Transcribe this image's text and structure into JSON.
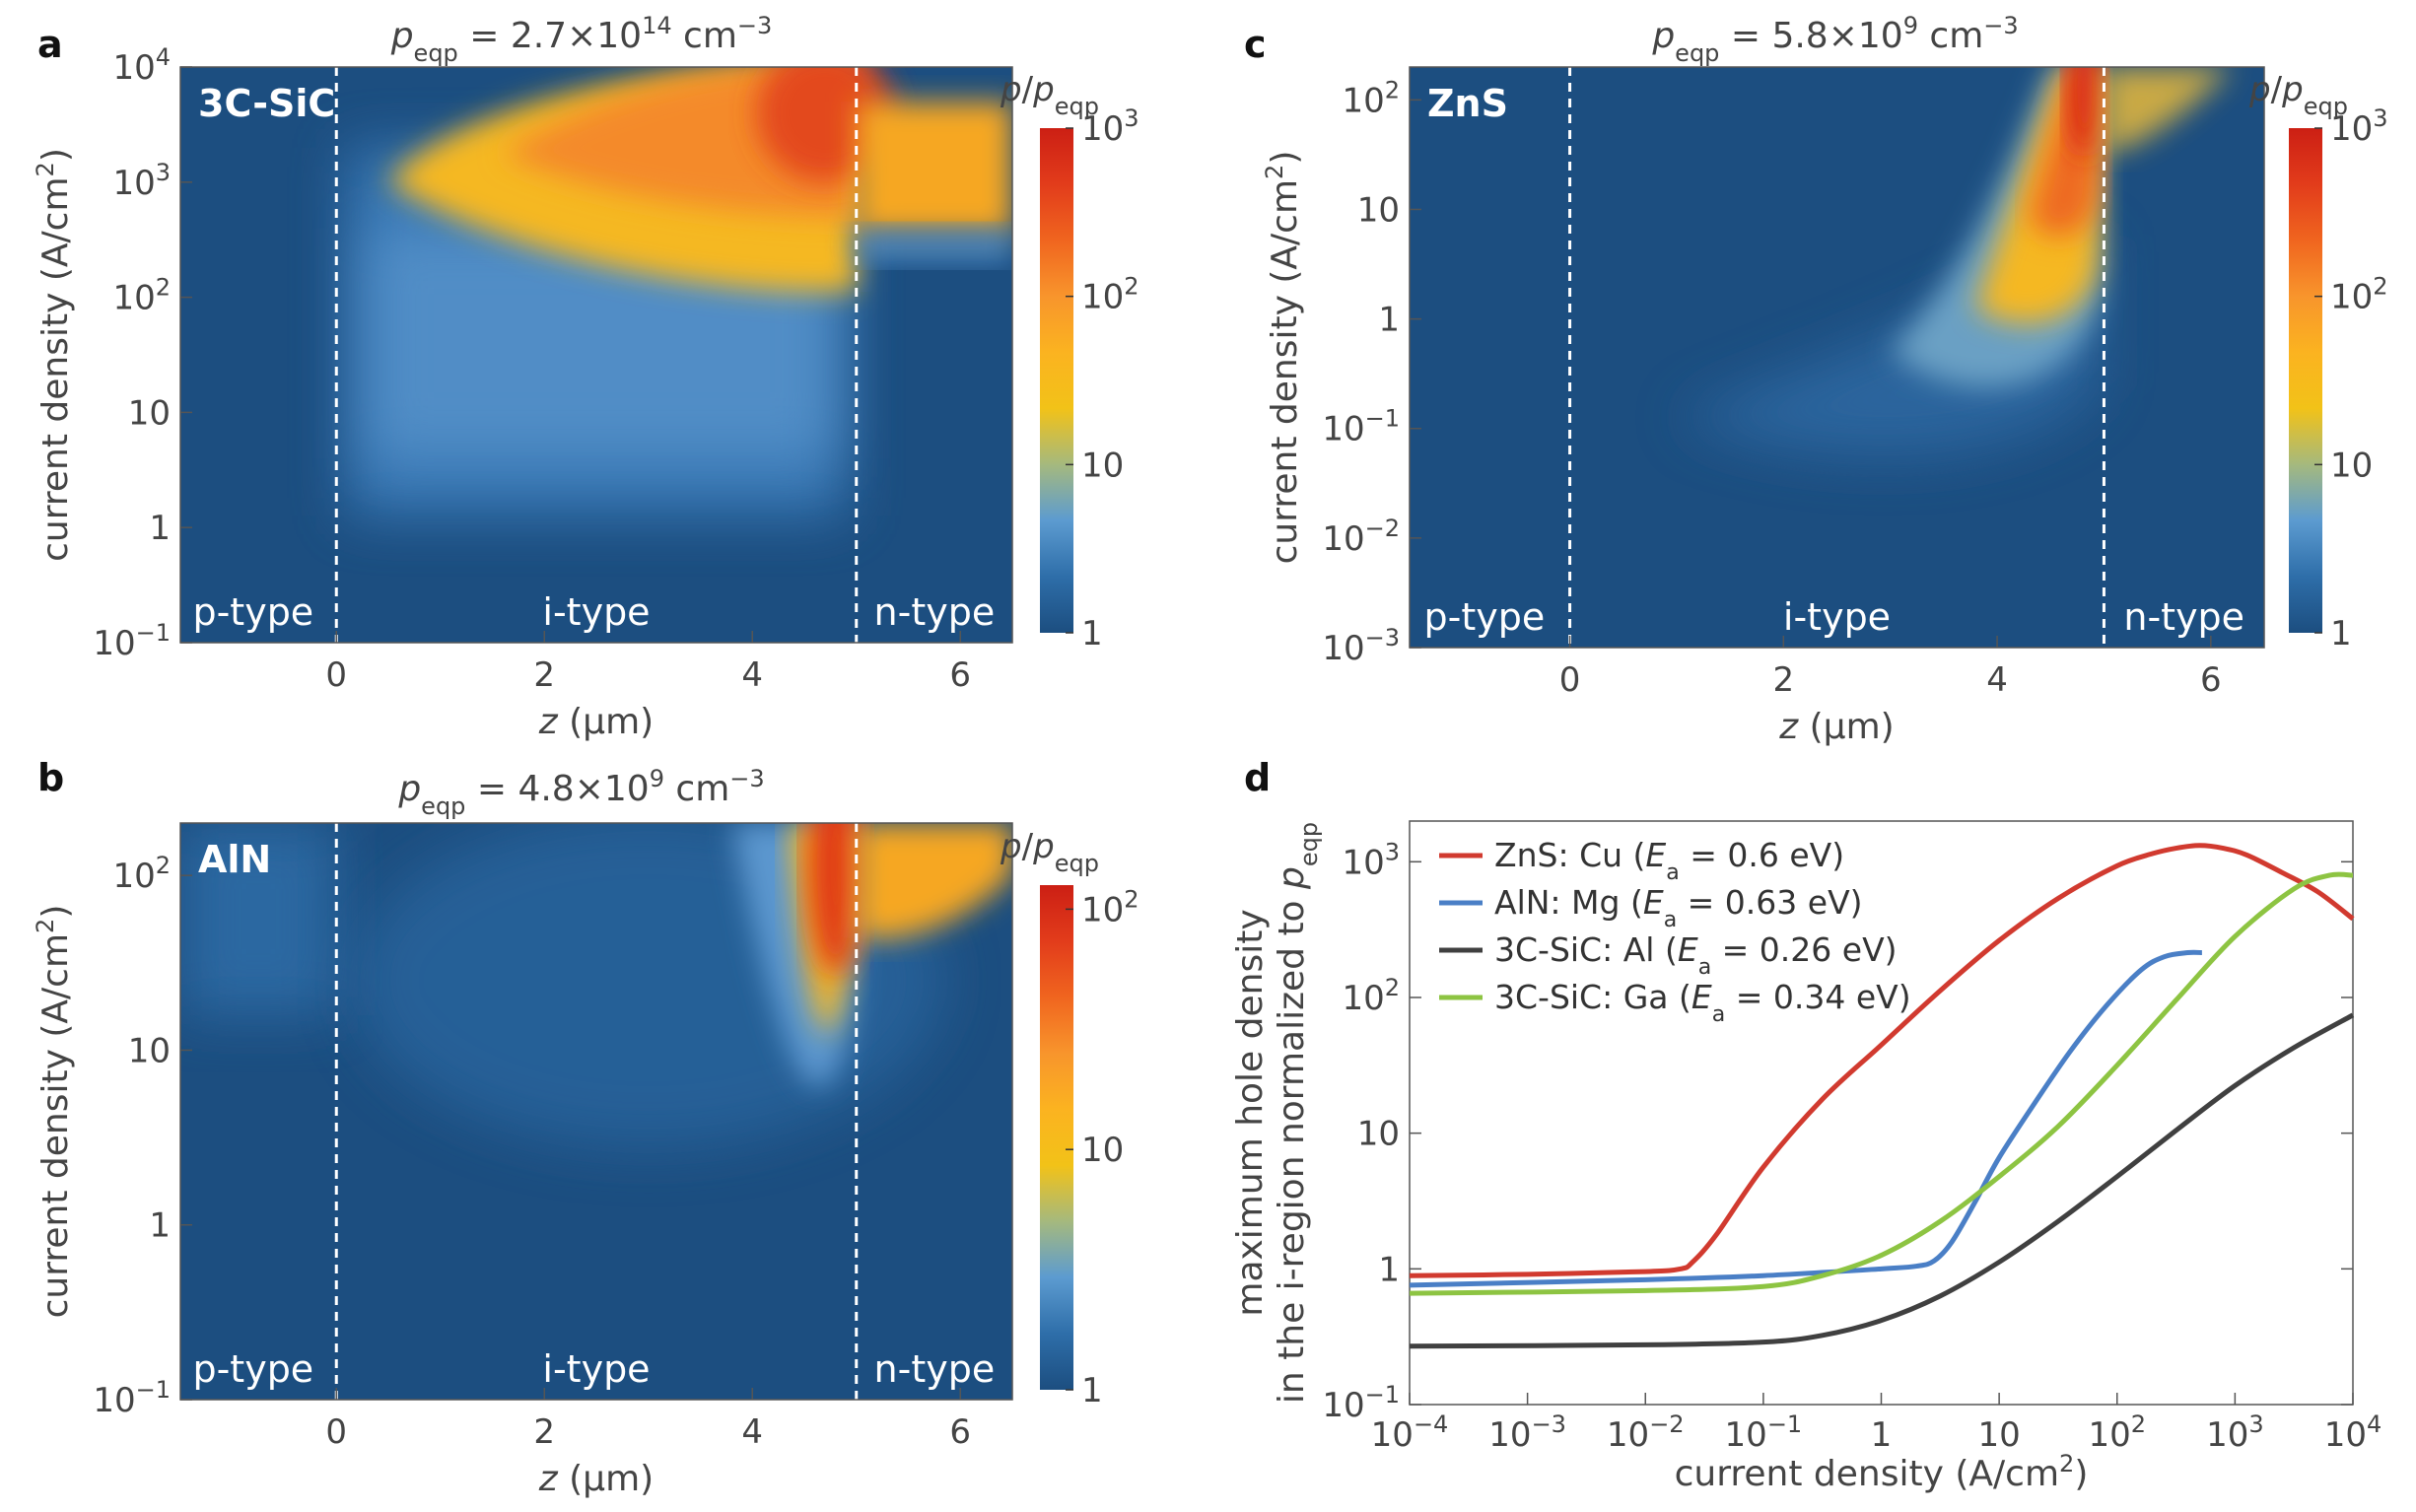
{
  "colors": {
    "base": "#1c4e80",
    "map_stops": [
      "#1c4e80",
      "#2e6ea9",
      "#5c9bd0",
      "#a5b97e",
      "#f2c218",
      "#fbb320",
      "#f8952c",
      "#f0651f",
      "#e23c1b",
      "#cc1f14"
    ],
    "red": "#d13a2f",
    "blue": "#4a7fc6",
    "black": "#404040",
    "green": "#8dc442"
  },
  "chart_data": [
    {
      "panel": "a",
      "type": "heatmap",
      "material": "3C-SiC",
      "title": {
        "p": "p",
        "sub": "eqp",
        "eq": " = 2.7×10",
        "exp": "14",
        "unit": " cm",
        "unitexp": "−3"
      },
      "xlabel": "z (µm)",
      "ylabel": "current density (A/cm²)",
      "xlim": [
        -1.5,
        6.5
      ],
      "ylim_log": [
        -1,
        4
      ],
      "xticks": [
        0,
        2,
        4,
        6
      ],
      "yticks": [
        {
          "e": 4,
          "t": "10",
          "s": "4"
        },
        {
          "e": 3,
          "t": "10",
          "s": "3"
        },
        {
          "e": 2,
          "t": "10",
          "s": "2"
        },
        {
          "e": 1,
          "t": "10",
          "s": ""
        },
        {
          "e": 0,
          "t": "1",
          "s": ""
        },
        {
          "e": -1,
          "t": "10",
          "s": "−1"
        }
      ],
      "regions": [
        {
          "label": "p-type",
          "z": -0.8
        },
        {
          "label": "i-type",
          "z": 2.5
        },
        {
          "label": "n-type",
          "z": 5.75
        }
      ],
      "boundaries": [
        0,
        5
      ],
      "colorbar": {
        "max_exp": 3,
        "ticks": [
          {
            "e": 3,
            "t": "10",
            "s": "3"
          },
          {
            "e": 2,
            "t": "10",
            "s": "2"
          },
          {
            "e": 1,
            "t": "10",
            "s": ""
          },
          {
            "e": 0,
            "t": "1",
            "s": ""
          }
        ]
      }
    },
    {
      "panel": "b",
      "type": "heatmap",
      "material": "AlN",
      "title": {
        "p": "p",
        "sub": "eqp",
        "eq": " = 4.8×10",
        "exp": "9",
        "unit": " cm",
        "unitexp": "−3"
      },
      "xlabel": "z (µm)",
      "ylabel": "current density (A/cm²)",
      "xlim": [
        -1.5,
        6.5
      ],
      "ylim_log": [
        -1,
        2.3
      ],
      "xticks": [
        0,
        2,
        4,
        6
      ],
      "yticks": [
        {
          "e": 2,
          "t": "10",
          "s": "2"
        },
        {
          "e": 1,
          "t": "10",
          "s": ""
        },
        {
          "e": 0,
          "t": "1",
          "s": ""
        },
        {
          "e": -1,
          "t": "10",
          "s": "−1"
        }
      ],
      "regions": [
        {
          "label": "p-type",
          "z": -0.8
        },
        {
          "label": "i-type",
          "z": 2.5
        },
        {
          "label": "n-type",
          "z": 5.75
        }
      ],
      "boundaries": [
        0,
        5
      ],
      "colorbar": {
        "max_exp": 2.1,
        "ticks": [
          {
            "e": 2,
            "t": "10",
            "s": "2"
          },
          {
            "e": 1,
            "t": "10",
            "s": ""
          },
          {
            "e": 0,
            "t": "1",
            "s": ""
          }
        ]
      }
    },
    {
      "panel": "c",
      "type": "heatmap",
      "material": "ZnS",
      "title": {
        "p": "p",
        "sub": "eqp",
        "eq": " = 5.8×10",
        "exp": "9",
        "unit": " cm",
        "unitexp": "−3"
      },
      "xlabel": "z (µm)",
      "ylabel": "current density (A/cm²)",
      "xlim": [
        -1.5,
        6.5
      ],
      "ylim_log": [
        -3,
        2.3
      ],
      "xticks": [
        0,
        2,
        4,
        6
      ],
      "yticks": [
        {
          "e": 2,
          "t": "10",
          "s": "2"
        },
        {
          "e": 1,
          "t": "10",
          "s": ""
        },
        {
          "e": 0,
          "t": "1",
          "s": ""
        },
        {
          "e": -1,
          "t": "10",
          "s": "−1"
        },
        {
          "e": -2,
          "t": "10",
          "s": "−2"
        },
        {
          "e": -3,
          "t": "10",
          "s": "−3"
        }
      ],
      "regions": [
        {
          "label": "p-type",
          "z": -0.8
        },
        {
          "label": "i-type",
          "z": 2.5
        },
        {
          "label": "n-type",
          "z": 5.75
        }
      ],
      "boundaries": [
        0,
        5
      ],
      "colorbar": {
        "max_exp": 3,
        "ticks": [
          {
            "e": 3,
            "t": "10",
            "s": "3"
          },
          {
            "e": 2,
            "t": "10",
            "s": "2"
          },
          {
            "e": 1,
            "t": "10",
            "s": ""
          },
          {
            "e": 0,
            "t": "1",
            "s": ""
          }
        ]
      }
    },
    {
      "panel": "d",
      "type": "line",
      "xlabel": "current density (A/cm²)",
      "ylabel_line1": "maximum hole density",
      "ylabel_line2": "in the i-region normalized to p",
      "ylabel_sub": "eqp",
      "xlim_log": [
        -4,
        4
      ],
      "ylim_log": [
        -1,
        3.3
      ],
      "xticks": [
        {
          "e": -4,
          "t": "10",
          "s": "−4"
        },
        {
          "e": -3,
          "t": "10",
          "s": "−3"
        },
        {
          "e": -2,
          "t": "10",
          "s": "−2"
        },
        {
          "e": -1,
          "t": "10",
          "s": "−1"
        },
        {
          "e": 0,
          "t": "1",
          "s": ""
        },
        {
          "e": 1,
          "t": "10",
          "s": ""
        },
        {
          "e": 2,
          "t": "10",
          "s": "2"
        },
        {
          "e": 3,
          "t": "10",
          "s": "3"
        },
        {
          "e": 4,
          "t": "10",
          "s": "4"
        }
      ],
      "yticks": [
        {
          "e": 3,
          "t": "10",
          "s": "3"
        },
        {
          "e": 2,
          "t": "10",
          "s": "2"
        },
        {
          "e": 1,
          "t": "10",
          "s": ""
        },
        {
          "e": 0,
          "t": "1",
          "s": ""
        },
        {
          "e": -1,
          "t": "10",
          "s": "−1"
        }
      ],
      "series": [
        {
          "name": "ZnS: Cu",
          "ea": "0.6 eV",
          "color": "red",
          "x": [
            -4,
            -3,
            -2,
            -1.7,
            -1.6,
            -1.4,
            -1,
            -0.5,
            0,
            0.5,
            1,
            1.5,
            2,
            2.3,
            2.5,
            2.7,
            2.9,
            3.1,
            3.4,
            3.7,
            4
          ],
          "y": [
            -0.05,
            -0.04,
            -0.02,
            0.0,
            0.05,
            0.25,
            0.75,
            1.25,
            1.65,
            2.05,
            2.42,
            2.73,
            2.97,
            3.06,
            3.1,
            3.12,
            3.1,
            3.05,
            2.92,
            2.78,
            2.58
          ]
        },
        {
          "name": "AlN: Mg",
          "ea": "0.63 eV",
          "color": "blue",
          "x": [
            -4,
            -2,
            -1,
            0,
            0.3,
            0.45,
            0.6,
            0.8,
            1.0,
            1.3,
            1.6,
            1.9,
            2.2,
            2.4,
            2.6,
            2.72
          ],
          "y": [
            -0.12,
            -0.08,
            -0.05,
            0.0,
            0.02,
            0.06,
            0.2,
            0.5,
            0.82,
            1.22,
            1.6,
            1.93,
            2.2,
            2.3,
            2.33,
            2.33
          ]
        },
        {
          "name": "3C-SiC: Al",
          "ea": "0.26 eV",
          "color": "black",
          "x": [
            -4,
            -2,
            -1,
            -0.5,
            0,
            0.5,
            1,
            1.5,
            2,
            2.5,
            3,
            3.5,
            4
          ],
          "y": [
            -0.57,
            -0.56,
            -0.54,
            -0.49,
            -0.38,
            -0.2,
            0.05,
            0.35,
            0.68,
            1.02,
            1.35,
            1.63,
            1.87
          ]
        },
        {
          "name": "3C-SiC: Ga",
          "ea": "0.34 eV",
          "color": "green",
          "x": [
            -4,
            -2,
            -1,
            -0.5,
            0,
            0.5,
            1,
            1.5,
            2,
            2.5,
            3,
            3.5,
            3.8,
            4
          ],
          "y": [
            -0.18,
            -0.16,
            -0.13,
            -0.05,
            0.1,
            0.35,
            0.68,
            1.05,
            1.5,
            1.98,
            2.45,
            2.8,
            2.9,
            2.9
          ]
        }
      ],
      "legend": {
        "position": "top-left",
        "prefix": "E",
        "sub": "a",
        "eq": " = "
      }
    }
  ],
  "labels": {
    "a": "a",
    "b": "b",
    "c": "c",
    "d": "d"
  },
  "colorbar_label": {
    "p": "p",
    "slash": "/",
    "p2": "p",
    "sub": "eqp"
  }
}
